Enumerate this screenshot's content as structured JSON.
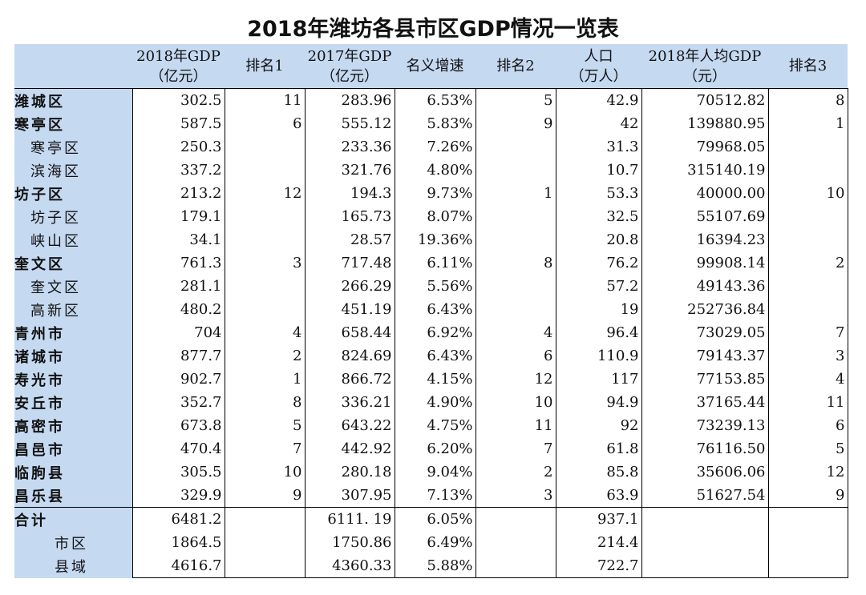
{
  "title": "2018年潍坊各县市区GDP情况一览表",
  "table": {
    "columns": [
      [
        "2018年GDP",
        "（亿元）"
      ],
      [
        "排名1"
      ],
      [
        "2017年GDP",
        "（亿元）"
      ],
      [
        "名义增速"
      ],
      [
        "排名2"
      ],
      [
        "人口",
        "（万人）"
      ],
      [
        "2018年人均GDP",
        "（元）"
      ],
      [
        "排名3"
      ]
    ],
    "rows": [
      {
        "label": "潍城区",
        "cells": [
          "302.5",
          "11",
          "283.96",
          "6.53%",
          "5",
          "42.9",
          "70512.82",
          "8"
        ]
      },
      {
        "label": "寒亭区",
        "cells": [
          "587.5",
          "6",
          "555.12",
          "5.83%",
          "9",
          "42",
          "139880.95",
          "1"
        ],
        "children": [
          {
            "label": "寒亭区",
            "cells": [
              "250.3",
              null,
              "233.36",
              "7.26%",
              null,
              "31.3",
              "79968.05",
              null
            ]
          },
          {
            "label": "滨海区",
            "cells": [
              "337.2",
              null,
              "321.76",
              "4.80%",
              null,
              "10.7",
              "315140.19",
              null
            ]
          }
        ]
      },
      {
        "label": "坊子区",
        "cells": [
          "213.2",
          "12",
          "194.3",
          "9.73%",
          "1",
          "53.3",
          "40000.00",
          "10"
        ],
        "children": [
          {
            "label": "坊子区",
            "cells": [
              "179.1",
              null,
              "165.73",
              "8.07%",
              null,
              "32.5",
              "55107.69",
              null
            ]
          },
          {
            "label": "峡山区",
            "cells": [
              "34.1",
              null,
              "28.57",
              "19.36%",
              null,
              "20.8",
              "16394.23",
              null
            ]
          }
        ]
      },
      {
        "label": "奎文区",
        "cells": [
          "761.3",
          "3",
          "717.48",
          "6.11%",
          "8",
          "76.2",
          "99908.14",
          "2"
        ],
        "children": [
          {
            "label": "奎文区",
            "cells": [
              "281.1",
              null,
              "266.29",
              "5.56%",
              null,
              "57.2",
              "49143.36",
              null
            ]
          },
          {
            "label": "高新区",
            "cells": [
              "480.2",
              null,
              "451.19",
              "6.43%",
              null,
              "19",
              "252736.84",
              null
            ]
          }
        ]
      },
      {
        "label": "青州市",
        "cells": [
          "704",
          "4",
          "658.44",
          "6.92%",
          "4",
          "96.4",
          "73029.05",
          "7"
        ]
      },
      {
        "label": "诸城市",
        "cells": [
          "877.7",
          "2",
          "824.69",
          "6.43%",
          "6",
          "110.9",
          "79143.37",
          "3"
        ]
      },
      {
        "label": "寿光市",
        "cells": [
          "902.7",
          "1",
          "866.72",
          "4.15%",
          "12",
          "117",
          "77153.85",
          "4"
        ]
      },
      {
        "label": "安丘市",
        "cells": [
          "352.7",
          "8",
          "336.21",
          "4.90%",
          "10",
          "94.9",
          "37165.44",
          "11"
        ]
      },
      {
        "label": "高密市",
        "cells": [
          "673.8",
          "5",
          "643.22",
          "4.75%",
          "11",
          "92",
          "73239.13",
          "6"
        ]
      },
      {
        "label": "昌邑市",
        "cells": [
          "470.4",
          "7",
          "442.92",
          "6.20%",
          "7",
          "61.8",
          "76116.50",
          "5"
        ]
      },
      {
        "label": "临朐县",
        "cells": [
          "305.5",
          "10",
          "280.18",
          "9.04%",
          "2",
          "85.8",
          "35606.06",
          "12"
        ]
      },
      {
        "label": "昌乐县",
        "cells": [
          "329.9",
          "9",
          "307.95",
          "7.13%",
          "3",
          "63.9",
          "51627.54",
          "9"
        ]
      },
      {
        "label": "合计",
        "cells": [
          "6481.2",
          null,
          "6111. 19",
          "6.05%",
          null,
          "937.1",
          null,
          null
        ],
        "children": [
          {
            "label": "市区",
            "cells": [
              "1864.5",
              null,
              "1750.86",
              "6.49%",
              null,
              "214.4",
              null,
              null
            ]
          },
          {
            "label": "县域",
            "cells": [
              "4616.7",
              null,
              "4360.33",
              "5.88%",
              null,
              "722.7",
              null,
              null
            ]
          }
        ]
      }
    ]
  }
}
